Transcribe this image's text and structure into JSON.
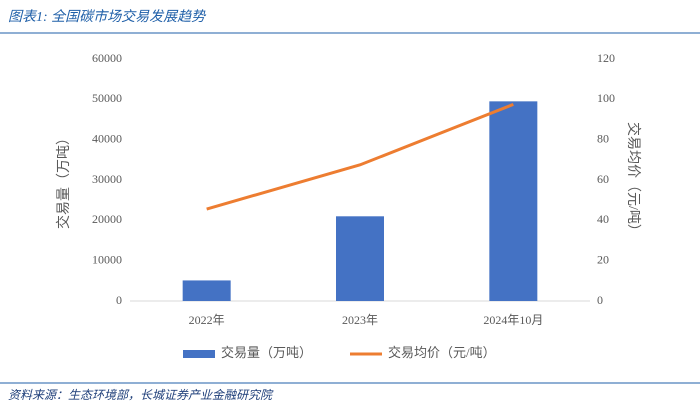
{
  "chart_data": {
    "type": "bar",
    "title": "图表1:  全国碳市场交易发展趋势",
    "source": "资料来源：生态环境部，长城证券产业金融研究院",
    "categories": [
      "2022年",
      "2023年",
      "2024年10月"
    ],
    "y_label": "交易量（万吨）",
    "y2_label": "交易均价（元/吨）",
    "series": [
      {
        "name": "交易量（万吨）",
        "type": "bar",
        "color": "#4472c4",
        "values": [
          5100,
          21000,
          49500
        ]
      },
      {
        "name": "交易均价（元/吨）",
        "type": "line",
        "axis": "y2",
        "color": "#ed7d31",
        "values": [
          45.6,
          67.5,
          97.5
        ]
      }
    ],
    "ylim": [
      0,
      60000
    ],
    "yticks": [
      0,
      10000,
      20000,
      30000,
      40000,
      50000,
      60000
    ],
    "y2lim": [
      0,
      120
    ],
    "y2ticks": [
      0,
      20,
      40,
      60,
      80,
      100,
      120
    ],
    "grid": false,
    "legend": "bottom"
  }
}
